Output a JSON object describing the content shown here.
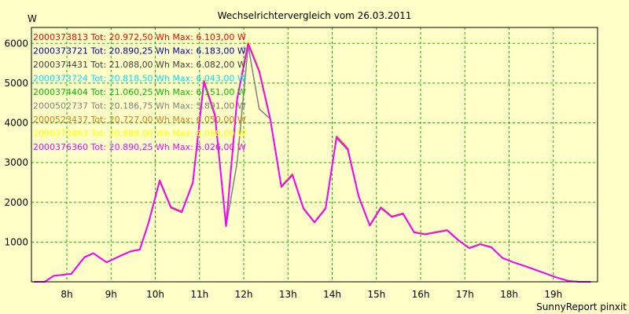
{
  "chart_data": {
    "type": "line",
    "title": "Wechselrichtervergleich vom 26.03.2011",
    "ylabel": "W",
    "footer": "SunnyReport pinxit",
    "ylim": [
      0,
      6400
    ],
    "yticks": [
      1000,
      2000,
      3000,
      4000,
      5000,
      6000
    ],
    "xlim": [
      7.2,
      20.0
    ],
    "xtick_values": [
      8,
      9,
      10,
      11,
      12,
      13,
      14,
      15,
      16,
      17,
      18,
      19
    ],
    "xtick_labels": [
      "8h",
      "9h",
      "10h",
      "11h",
      "12h",
      "13h",
      "14h",
      "15h",
      "16h",
      "17h",
      "18h",
      "19h"
    ],
    "grid": true,
    "legend_position": "top-left",
    "base_x": [
      7.25,
      7.5,
      7.7,
      8.1,
      8.4,
      8.6,
      8.9,
      9.2,
      9.45,
      9.65,
      9.85,
      10.1,
      10.35,
      10.6,
      10.85,
      11.1,
      11.35,
      11.6,
      11.85,
      12.1,
      12.35,
      12.6,
      12.85,
      13.1,
      13.35,
      13.6,
      13.85,
      14.1,
      14.35,
      14.6,
      14.85,
      15.1,
      15.35,
      15.6,
      15.85,
      16.1,
      16.35,
      16.6,
      16.85,
      17.1,
      17.35,
      17.6,
      17.85,
      18.1,
      18.35,
      18.6,
      18.85,
      19.1,
      19.35,
      19.6,
      19.85
    ],
    "series": [
      {
        "name": "2000373813 Tot: 20.972,50 Wh Max: 6.103,00 W",
        "color": "#ff0000",
        "offset": 0
      },
      {
        "name": "2000373721 Tot: 20.890,25 Wh Max: 6.183,00 W",
        "color": "#0000a0",
        "offset": 30
      },
      {
        "name": "2000374431 Tot: 21.088,00 Wh Max: 6.082,00 W",
        "color": "#404040",
        "offset": -20
      },
      {
        "name": "2000373724 Tot: 20.818,50 Wh Max: 6.043,00 W",
        "color": "#00e0ff",
        "offset": -30
      },
      {
        "name": "2000374404 Tot: 21.060,25 Wh Max: 6.151,00 W",
        "color": "#00c000",
        "offset": 20
      },
      {
        "name": "2000502737 Tot: 20.186,75 Wh Max: 5.891,00 W",
        "color": "#808080",
        "offset": -60,
        "dip": true
      },
      {
        "name": "2000523437 Tot: 20.727,00 Wh Max: 6.050,00 W",
        "color": "#d08020",
        "offset": 10
      },
      {
        "name": "2000373863 Tot: 20.888,00 Wh Max: 6.098,00 W",
        "color": "#ffff00",
        "offset": 60
      },
      {
        "name": "2000376360 Tot: 20.890,25 Wh Max: 6.026,00 W",
        "color": "#ff00ff",
        "offset": 0
      }
    ],
    "base_y": [
      0,
      0,
      150,
      200,
      620,
      720,
      490,
      650,
      770,
      810,
      1500,
      2550,
      1880,
      1760,
      2500,
      5050,
      4200,
      1400,
      4600,
      6000,
      5300,
      4100,
      2400,
      2700,
      1850,
      1500,
      1850,
      3650,
      3350,
      2150,
      1420,
      1870,
      1640,
      1720,
      1250,
      1200,
      1250,
      1300,
      1050,
      850,
      950,
      870,
      600,
      490,
      400,
      300,
      200,
      100,
      20,
      0,
      0
    ]
  }
}
